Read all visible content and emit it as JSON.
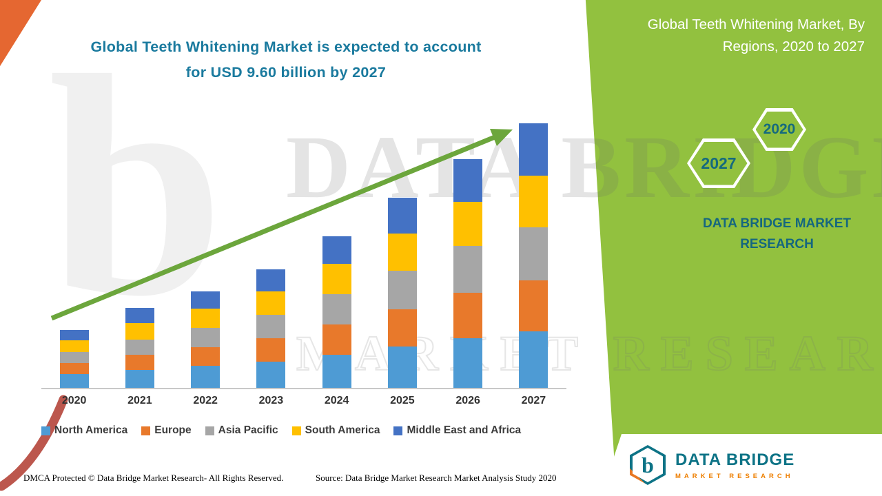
{
  "title": {
    "line1": "Global Teeth Whitening Market is expected to account",
    "line2": "for USD 9.60 billion by 2027"
  },
  "side_panel": {
    "heading": "Global Teeth Whitening Market, By Regions, 2020 to 2027",
    "hexagons": [
      "2027",
      "2020"
    ],
    "brand": "DATA BRIDGE MARKET RESEARCH"
  },
  "chart_data": {
    "type": "bar",
    "stacked": true,
    "title": "Global Teeth Whitening Market, By Regions, 2020 to 2027",
    "unit": "USD billion",
    "xlabel": "",
    "ylabel": "",
    "ylim": [
      0,
      9.6
    ],
    "grid": false,
    "legend_position": "bottom",
    "y_axis_ticks_visible": false,
    "annotation": "Total expected to reach USD 9.60 billion by 2027",
    "categories": [
      "2020",
      "2021",
      "2022",
      "2023",
      "2024",
      "2025",
      "2026",
      "2027"
    ],
    "totals": [
      2.1,
      2.9,
      3.5,
      4.3,
      5.5,
      6.9,
      8.3,
      9.6
    ],
    "series": [
      {
        "name": "North America",
        "color": "#4E9BD4",
        "values": [
          0.5,
          0.65,
          0.8,
          0.95,
          1.2,
          1.5,
          1.8,
          2.06
        ]
      },
      {
        "name": "Europe",
        "color": "#E8792B",
        "values": [
          0.4,
          0.55,
          0.68,
          0.85,
          1.1,
          1.35,
          1.65,
          1.83
        ]
      },
      {
        "name": "Asia Pacific",
        "color": "#A6A6A6",
        "values": [
          0.4,
          0.56,
          0.7,
          0.85,
          1.1,
          1.4,
          1.7,
          1.93
        ]
      },
      {
        "name": "South America",
        "color": "#FFC000",
        "values": [
          0.42,
          0.58,
          0.7,
          0.85,
          1.1,
          1.35,
          1.6,
          1.88
        ]
      },
      {
        "name": "Middle East and Africa",
        "color": "#4472C4",
        "values": [
          0.38,
          0.56,
          0.62,
          0.8,
          1.0,
          1.3,
          1.55,
          1.9
        ]
      }
    ]
  },
  "watermark": {
    "letter": "b",
    "line1": "DATA BRIDGE",
    "line2": "MARKET RESEARCH"
  },
  "footer": {
    "dmca": "DMCA Protected © Data Bridge Market Research- All Rights Reserved.",
    "source": "Source: Data Bridge Market Research Market Analysis Study 2020"
  },
  "logo": {
    "letter": "b",
    "name": "DATA BRIDGE",
    "sub": "MARKET RESEARCH"
  },
  "colors": {
    "green_panel": "#92C13F",
    "title_teal": "#1A7A9E",
    "arrow_green": "#6CA63C",
    "brand_teal": "#15677F",
    "logo_teal": "#0D7386",
    "logo_orange": "#EE7F00",
    "accent_orange": "#E2571B",
    "accent_red": "#B03A2E"
  }
}
